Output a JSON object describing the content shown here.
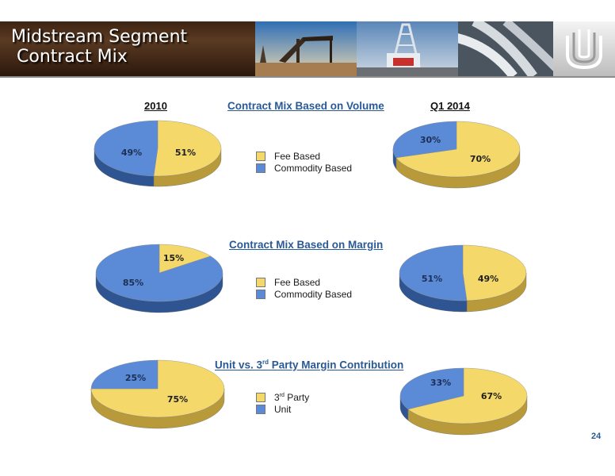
{
  "header": {
    "title": "Midstream Segment\n Contract Mix"
  },
  "colors": {
    "fee": "#f5d86a",
    "fee_side": "#b99a3a",
    "commodity": "#5b8bd6",
    "commodity_side": "#2e5592",
    "title_blue": "#2a5a96",
    "header_brown": "#4a2e1a"
  },
  "icons": {
    "photo1": "oil-pumpjack-image",
    "photo2": "drilling-rig-image",
    "photo3": "pipeline-image",
    "logo": "company-logo-icon"
  },
  "labels": {
    "year_left": "2010",
    "year_right": "Q1 2014",
    "volume_title": "Contract Mix Based on Volume",
    "margin_title": "Contract Mix Based on Margin",
    "unit_title_pre": "Unit vs. 3",
    "unit_title_sup": "rd",
    "unit_title_post": " Party Margin Contribution"
  },
  "legends": {
    "volume": [
      {
        "label": "Fee Based"
      },
      {
        "label": "Commodity Based"
      }
    ],
    "margin": [
      {
        "label": "Fee Based"
      },
      {
        "label": "Commodity Based"
      }
    ],
    "unit": [
      {
        "label_pre": "3",
        "label_sup": "rd",
        "label_post": " Party"
      },
      {
        "label": "Unit"
      }
    ]
  },
  "chart_data": [
    {
      "type": "pie",
      "title": "Contract Mix Based on Volume",
      "subtitle": "2010",
      "slices": [
        {
          "label": "Fee Based",
          "value": 51,
          "display": "51%"
        },
        {
          "label": "Commodity Based",
          "value": 49,
          "display": "49%"
        }
      ]
    },
    {
      "type": "pie",
      "title": "Contract Mix Based on Volume",
      "subtitle": "Q1 2014",
      "slices": [
        {
          "label": "Fee Based",
          "value": 70,
          "display": "70%"
        },
        {
          "label": "Commodity Based",
          "value": 30,
          "display": "30%"
        }
      ]
    },
    {
      "type": "pie",
      "title": "Contract Mix Based on Margin",
      "subtitle": "2010",
      "slices": [
        {
          "label": "Fee Based",
          "value": 15,
          "display": "15%"
        },
        {
          "label": "Commodity Based",
          "value": 85,
          "display": "85%"
        }
      ]
    },
    {
      "type": "pie",
      "title": "Contract Mix Based on Margin",
      "subtitle": "Q1 2014",
      "slices": [
        {
          "label": "Fee Based",
          "value": 49,
          "display": "49%"
        },
        {
          "label": "Commodity Based",
          "value": 51,
          "display": "51%"
        }
      ]
    },
    {
      "type": "pie",
      "title": "Unit vs. 3rd Party Margin Contribution",
      "subtitle": "2010",
      "slices": [
        {
          "label": "3rd Party",
          "value": 75,
          "display": "75%"
        },
        {
          "label": "Unit",
          "value": 25,
          "display": "25%"
        }
      ]
    },
    {
      "type": "pie",
      "title": "Unit vs. 3rd Party Margin Contribution",
      "subtitle": "Q1 2014",
      "slices": [
        {
          "label": "3rd Party",
          "value": 67,
          "display": "67%"
        },
        {
          "label": "Unit",
          "value": 33,
          "display": "33%"
        }
      ]
    }
  ],
  "footer": {
    "page_number": "24"
  }
}
